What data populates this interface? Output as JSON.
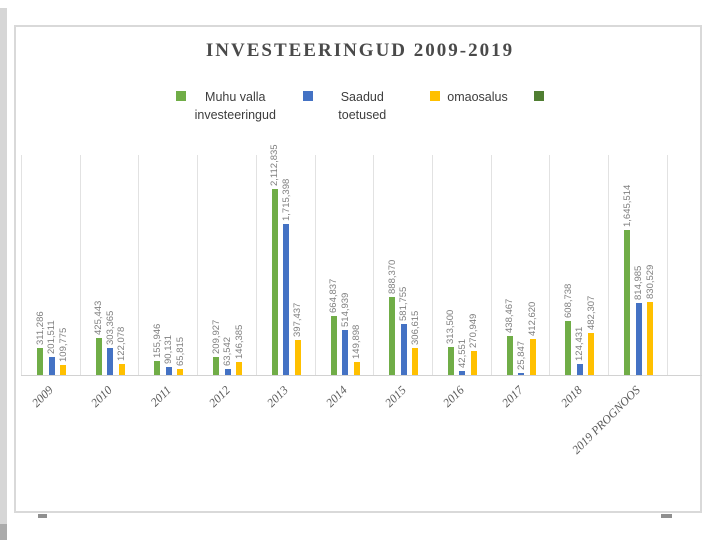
{
  "window": {
    "surface": "slide"
  },
  "chart_data": {
    "type": "bar",
    "title": "INVESTEERINGUD 2009-2019",
    "categories": [
      "2009",
      "2010",
      "2011",
      "2012",
      "2013",
      "2014",
      "2015",
      "2016",
      "2017",
      "2018",
      "2019 PROGNOOS"
    ],
    "series": [
      {
        "name": "Muhu valla investeeringud",
        "color": "#70AD47",
        "values": [
          311286,
          425443,
          155946,
          209927,
          2112835,
          664837,
          888370,
          313500,
          438467,
          608738,
          1645514
        ],
        "labels": [
          "311,286",
          "425,443",
          "155,946",
          "209,927",
          "2,112,835",
          "664,837",
          "888,370",
          "313,500",
          "438,467",
          "608,738",
          "1,645,514"
        ]
      },
      {
        "name": "Saadud toetused",
        "color": "#4472C4",
        "values": [
          201511,
          303365,
          90131,
          63542,
          1715398,
          514939,
          581755,
          42551,
          25847,
          124431,
          814985
        ],
        "labels": [
          "201,511",
          "303,365",
          "90,131",
          "63,542",
          "1,715,398",
          "514,939",
          "581,755",
          "42,551",
          "25,847",
          "124,431",
          "814,985"
        ]
      },
      {
        "name": "omaosalus",
        "color": "#FFC000",
        "values": [
          109775,
          122078,
          65815,
          146385,
          397437,
          149898,
          306615,
          270949,
          412620,
          482307,
          830529
        ],
        "labels": [
          "109,775",
          "122,078",
          "65,815",
          "146,385",
          "397,437",
          "149,898",
          "306,615",
          "270,949",
          "412,620",
          "482,307",
          "830,529"
        ]
      }
    ],
    "extra_legend_marker": {
      "label": "",
      "color": "#507E32"
    },
    "ylim": [
      0,
      2500000
    ],
    "xlabel": "",
    "ylabel": "",
    "legend_position": "top",
    "gridlines": "vertical category separators only",
    "data_label_color": "#7f7f7f",
    "axis_label_color": "#5a5a5a"
  }
}
